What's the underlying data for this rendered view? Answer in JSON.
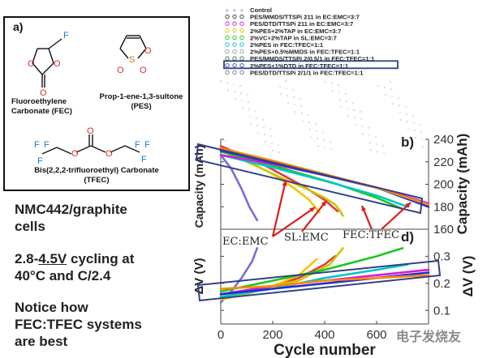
{
  "panel_label_a": "a)",
  "molecules": {
    "fec_label": [
      "Fluoroethylene",
      "Carbonate (FEC)"
    ],
    "pes_label": [
      "Prop-1-ene-1,3-sultone",
      "(PES)"
    ],
    "tfec_label": [
      "Bis(2,2,2-trifluoroethyl) Carbonate",
      "(TFEC)"
    ]
  },
  "notes": {
    "cells": [
      "NMC442/graphite",
      "cells"
    ],
    "cycling_prefix": "2.8-",
    "cycling_voltage": "4.5V",
    "cycling_suffix": " cycling at",
    "cycling_line2": "40°C and C/2.4",
    "notice": [
      "Notice how",
      "FEC:TFEC systems",
      "are best"
    ]
  },
  "watermark": "电子发烧友",
  "chart_data": [
    {
      "type": "line",
      "panel": "b)",
      "ylabel_left": "Capacity (mAh)",
      "ylabel_right": "Capacity (mAh)",
      "ylim": [
        160,
        240
      ],
      "yticks": [
        160,
        180,
        200,
        220,
        240
      ],
      "xlim": [
        0,
        800
      ],
      "legend_items": [
        "Control",
        "PES/MMDS/TTSPi 211 in EC:EMC=3:7",
        "PES/DTD/TTSPi 211 in EC:EMC=3:7",
        "2%PES+2%TAP in EC:EMC=3:7",
        "2%VC+2%TAP in SL:EMC=3:7",
        "2%PES in FEC:TFEC=1:1",
        "2%PES+0.5%MMDS in FEC:TFEC=1:1",
        "PES/MMDS/TTSPi  2/0.5/1 in FEC:TFEC=1:1",
        "2%PES+1%DTD in FEC:TFEC=1:1",
        "PES/DTD/TTSPi  2/1/1 in FEC:TFEC=1:1"
      ],
      "highlighted_legend_index": 8,
      "series": [
        {
          "name": "Control",
          "x": [
            0,
            40,
            80,
            110,
            140
          ],
          "y": [
            226,
            214,
            196,
            180,
            168
          ]
        },
        {
          "name": "PES/MMDS/TTSPi 211 in EC:EMC=3:7",
          "x": [
            0,
            80,
            160,
            240,
            320,
            400,
            450
          ],
          "y": [
            234,
            226,
            218,
            208,
            198,
            186,
            176
          ]
        },
        {
          "name": "2%PES+2%TAP in EC:EMC=3:7",
          "x": [
            0,
            100,
            200,
            280,
            340,
            380
          ],
          "y": [
            232,
            221,
            209,
            197,
            186,
            175
          ]
        },
        {
          "name": "2%VC+2%TAP in SL:EMC=3:7",
          "x": [
            0,
            120,
            240,
            330,
            400,
            440,
            460,
            470
          ],
          "y": [
            230,
            218,
            205,
            196,
            188,
            182,
            176,
            172
          ]
        },
        {
          "name": "2%PES in FEC:TFEC=1:1",
          "x": [
            0,
            150,
            300,
            450,
            600,
            700
          ],
          "y": [
            229,
            220,
            210,
            200,
            188,
            178
          ]
        },
        {
          "name": "2%PES+0.5%MMDS in FEC:TFEC=1:1",
          "x": [
            0,
            200,
            400,
            600,
            720
          ],
          "y": [
            226,
            215,
            203,
            190,
            180
          ]
        },
        {
          "name": "PES/MMDS/TTSPi  2/0.5/1 in FEC:TFEC=1:1",
          "x": [
            0,
            200,
            400,
            600,
            800
          ],
          "y": [
            226,
            218,
            208,
            197,
            183
          ]
        },
        {
          "name": "2%PES+1%DTD in FEC:TFEC=1:1",
          "x": [
            0,
            200,
            400,
            600,
            800
          ],
          "y": [
            230,
            219,
            208,
            197,
            180
          ]
        },
        {
          "name": "PES/DTD/TTSPi  2/1/1 in FEC:TFEC=1:1",
          "x": [
            0,
            200,
            400,
            600,
            800
          ],
          "y": [
            232,
            221,
            209,
            197,
            182
          ]
        }
      ]
    },
    {
      "type": "line",
      "panel": "d)",
      "ylabel_left": "ΔV (V)",
      "ylabel_right": "ΔV (V)",
      "xlabel": "Cycle number",
      "ylim": [
        0.05,
        0.4
      ],
      "yticks": [
        0.1,
        0.2,
        0.3
      ],
      "xlim": [
        0,
        800
      ],
      "xticks": [
        0,
        200,
        400,
        600
      ],
      "annotations": [
        "EC:EMC",
        "SL:EMC",
        "FEC:TFEC"
      ],
      "series": [
        {
          "name": "Control",
          "x": [
            0,
            40,
            80,
            120,
            140
          ],
          "y": [
            0.13,
            0.17,
            0.22,
            0.28,
            0.33
          ]
        },
        {
          "name": "PES/MMDS/TTSPi 211 in EC:EMC=3:7",
          "x": [
            0,
            100,
            200,
            300,
            400,
            440
          ],
          "y": [
            0.15,
            0.17,
            0.19,
            0.22,
            0.27,
            0.3
          ]
        },
        {
          "name": "2%PES+2%TAP in EC:EMC=3:7",
          "x": [
            0,
            100,
            200,
            300,
            370
          ],
          "y": [
            0.14,
            0.16,
            0.19,
            0.23,
            0.29
          ]
        },
        {
          "name": "2%VC+2%TAP in SL:EMC=3:7",
          "x": [
            0,
            150,
            300,
            420,
            470
          ],
          "y": [
            0.15,
            0.18,
            0.21,
            0.27,
            0.33
          ]
        },
        {
          "name": "2%PES in FEC:TFEC=1:1",
          "x": [
            0,
            200,
            400,
            600,
            700
          ],
          "y": [
            0.17,
            0.21,
            0.25,
            0.3,
            0.33
          ]
        },
        {
          "name": "2%PES+0.5%MMDS in FEC:TFEC=1:1",
          "x": [
            0,
            200,
            400,
            600,
            720
          ],
          "y": [
            0.15,
            0.18,
            0.22,
            0.25,
            0.27
          ]
        },
        {
          "name": "PES/MMDS/TTSPi  2/0.5/1 in FEC:TFEC=1:1",
          "x": [
            0,
            200,
            400,
            600,
            800
          ],
          "y": [
            0.16,
            0.19,
            0.21,
            0.23,
            0.25
          ]
        },
        {
          "name": "2%PES+1%DTD in FEC:TFEC=1:1",
          "x": [
            0,
            200,
            400,
            600,
            800
          ],
          "y": [
            0.16,
            0.18,
            0.2,
            0.22,
            0.24
          ]
        },
        {
          "name": "PES/DTD/TTSPi  2/1/1 in FEC:TFEC=1:1",
          "x": [
            0,
            200,
            400,
            600,
            800
          ],
          "y": [
            0.18,
            0.19,
            0.21,
            0.22,
            0.23
          ]
        }
      ]
    }
  ]
}
